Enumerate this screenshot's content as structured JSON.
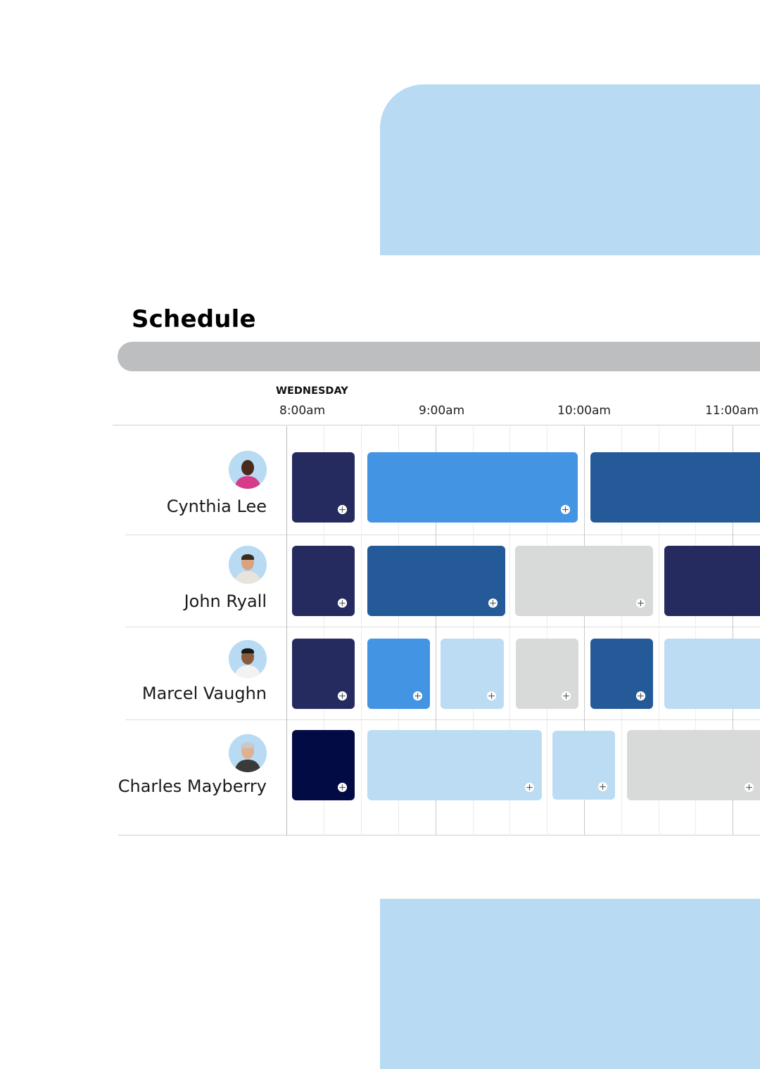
{
  "title": "Schedule",
  "day": "WEDNESDAY",
  "times": [
    "8:00am",
    "9:00am",
    "10:00am",
    "11:00am"
  ],
  "colors": {
    "navy": "#262b5f",
    "darkest": "#030b45",
    "medium_blue": "#4494e4",
    "strong_blue": "#255a99",
    "light_blue": "#bcdcf4",
    "gray": "#d8d9d9",
    "accent_panel": "#b8dbf3"
  },
  "people": [
    {
      "name": "Cynthia Lee",
      "avatar_icon": "person-avatar-icon",
      "shifts": [
        {
          "color": "navy",
          "icon": "add-icon"
        },
        {
          "color": "medium_blue",
          "icon": "add-icon"
        },
        {
          "color": "strong_blue",
          "icon": "add-icon"
        }
      ]
    },
    {
      "name": "John Ryall",
      "avatar_icon": "person-avatar-icon",
      "shifts": [
        {
          "color": "navy",
          "icon": "add-icon"
        },
        {
          "color": "strong_blue",
          "icon": "add-icon"
        },
        {
          "color": "gray",
          "icon": "add-icon"
        },
        {
          "color": "navy",
          "icon": "add-icon"
        }
      ]
    },
    {
      "name": "Marcel Vaughn",
      "avatar_icon": "person-avatar-icon",
      "shifts": [
        {
          "color": "navy",
          "icon": "add-icon"
        },
        {
          "color": "medium_blue",
          "icon": "add-icon"
        },
        {
          "color": "light_blue",
          "icon": "add-icon"
        },
        {
          "color": "gray",
          "icon": "add-icon"
        },
        {
          "color": "strong_blue",
          "icon": "add-icon"
        },
        {
          "color": "light_blue",
          "icon": "add-icon"
        }
      ]
    },
    {
      "name": "Charles Mayberry",
      "avatar_icon": "person-avatar-icon",
      "shifts": [
        {
          "color": "darkest",
          "icon": "add-icon"
        },
        {
          "color": "light_blue",
          "icon": "add-icon"
        },
        {
          "color": "light_blue",
          "icon": "add-icon"
        },
        {
          "color": "gray",
          "icon": "add-icon"
        }
      ]
    }
  ]
}
